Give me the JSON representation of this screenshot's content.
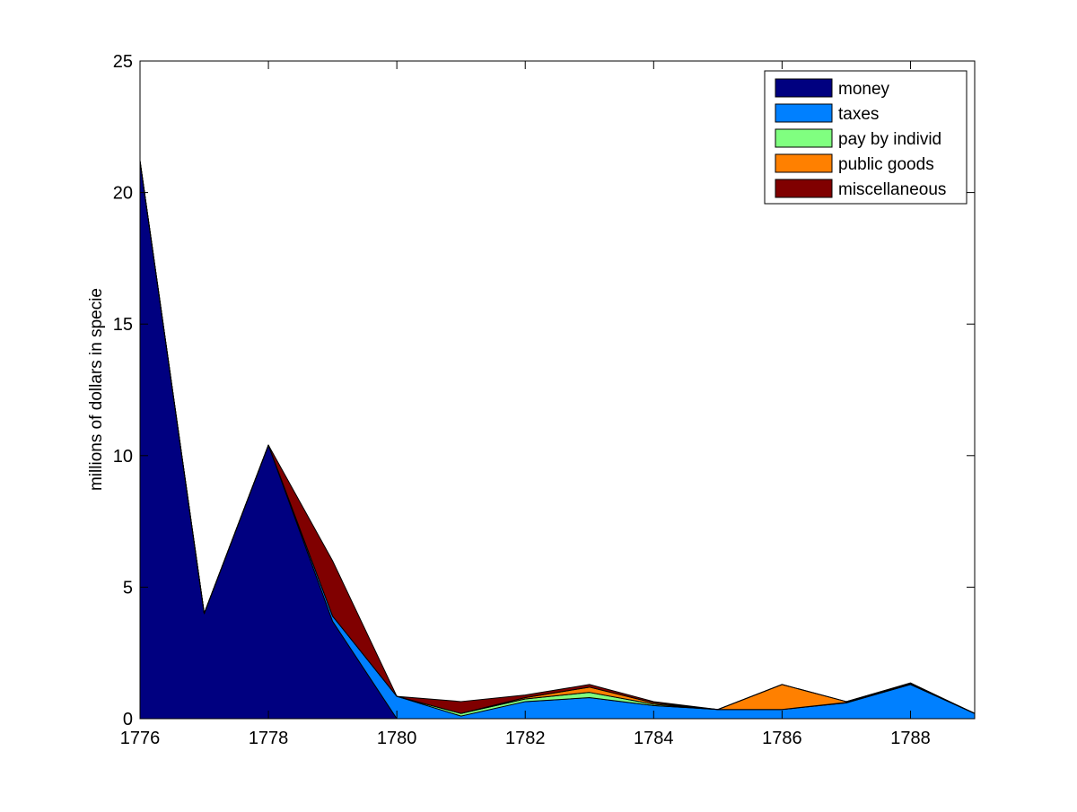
{
  "chart_data": {
    "type": "area",
    "stacked": true,
    "title": "",
    "xlabel": "",
    "ylabel": "millions of dollars in specie",
    "xlim": [
      1776,
      1789
    ],
    "ylim": [
      0,
      25
    ],
    "x_ticks": [
      1776,
      1778,
      1780,
      1782,
      1784,
      1786,
      1788
    ],
    "y_ticks": [
      0,
      5,
      10,
      15,
      20,
      25
    ],
    "grid": false,
    "legend_position": "top-right",
    "x": [
      1776,
      1777,
      1778,
      1779,
      1780,
      1781,
      1782,
      1783,
      1784,
      1785,
      1786,
      1787,
      1788,
      1789
    ],
    "series": [
      {
        "name": "money",
        "color": "#000080",
        "values": [
          21.2,
          4.0,
          10.4,
          3.7,
          0.0,
          0.0,
          0.0,
          0.0,
          0.0,
          0.0,
          0.0,
          0.0,
          0.0,
          0.0
        ]
      },
      {
        "name": "taxes",
        "color": "#0080FF",
        "values": [
          0.0,
          0.0,
          0.0,
          0.2,
          0.85,
          0.1,
          0.65,
          0.8,
          0.5,
          0.35,
          0.35,
          0.6,
          1.3,
          0.2
        ]
      },
      {
        "name": "pay by individ",
        "color": "#80FF80",
        "values": [
          0.0,
          0.0,
          0.0,
          0.0,
          0.0,
          0.1,
          0.1,
          0.2,
          0.05,
          0.0,
          0.0,
          0.02,
          0.02,
          0.0
        ]
      },
      {
        "name": "public goods",
        "color": "#FF8000",
        "values": [
          0.0,
          0.0,
          0.0,
          0.0,
          0.0,
          0.0,
          0.05,
          0.2,
          0.05,
          0.0,
          0.95,
          0.03,
          0.02,
          0.0
        ]
      },
      {
        "name": "miscellaneous",
        "color": "#800000",
        "values": [
          0.0,
          0.0,
          0.0,
          2.1,
          0.0,
          0.45,
          0.1,
          0.1,
          0.05,
          0.0,
          0.0,
          0.0,
          0.02,
          0.0
        ]
      }
    ]
  }
}
